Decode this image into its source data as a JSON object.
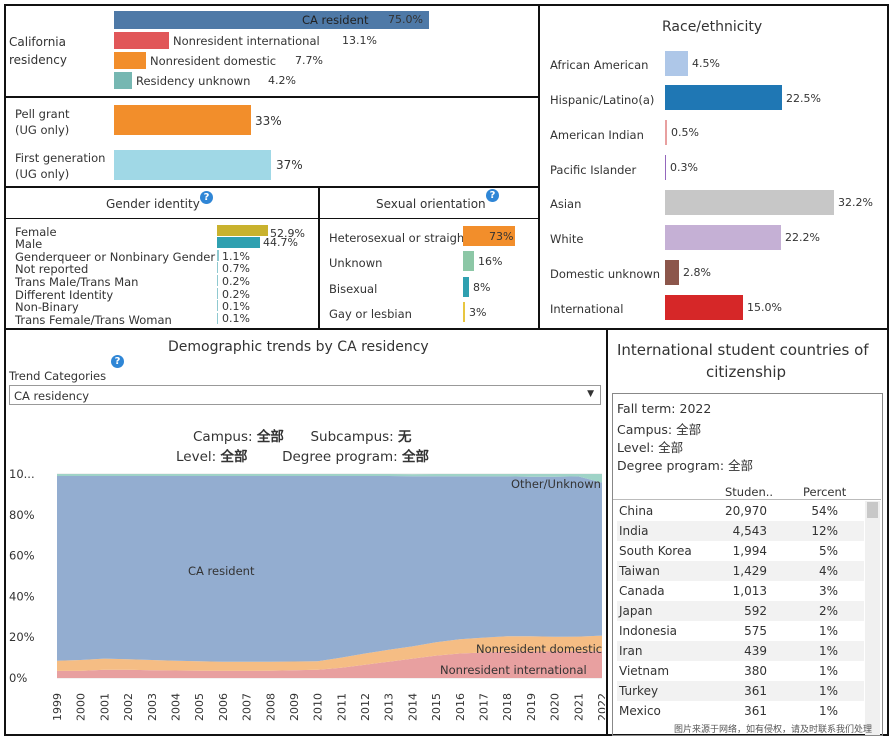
{
  "residency": {
    "label_line1": "California",
    "label_line2": "residency",
    "items": [
      {
        "label": "CA resident",
        "value": "75.0%",
        "pct": 75.0,
        "color": "#4e79a7"
      },
      {
        "label": "Nonresident international",
        "value": "13.1%",
        "pct": 13.1,
        "color": "#e15759"
      },
      {
        "label": "Nonresident domestic",
        "value": "7.7%",
        "pct": 7.7,
        "color": "#f28e2b"
      },
      {
        "label": "Residency unknown",
        "value": "4.2%",
        "pct": 4.2,
        "color": "#76b7b2"
      }
    ]
  },
  "pell": {
    "label_line1": "Pell grant",
    "label_line2": "(UG only)",
    "value": "33%",
    "pct": 33,
    "color": "#f28e2b"
  },
  "firstgen": {
    "label_line1": "First generation",
    "label_line2": "(UG only)",
    "value": "37%",
    "pct": 37,
    "color": "#a0d8e6"
  },
  "gender": {
    "title": "Gender identity",
    "items": [
      {
        "label": "Female",
        "value": "52.9%",
        "pct": 52.9,
        "color": "#c9b22e"
      },
      {
        "label": "Male",
        "value": "44.7%",
        "pct": 44.7,
        "color": "#2fa0b0"
      },
      {
        "label": "Genderqueer or Nonbinary Gender",
        "value": "1.1%",
        "pct": 1.1,
        "color": "#8fc9d0"
      },
      {
        "label": "Not reported",
        "value": "0.7%",
        "pct": 0.7,
        "color": "#8fc9d0"
      },
      {
        "label": "Trans Male/Trans Man",
        "value": "0.2%",
        "pct": 0.2,
        "color": "#8fc9d0"
      },
      {
        "label": "Different Identity",
        "value": "0.2%",
        "pct": 0.2,
        "color": "#8fc9d0"
      },
      {
        "label": "Non-Binary",
        "value": "0.1%",
        "pct": 0.1,
        "color": "#8fc9d0"
      },
      {
        "label": "Trans Female/Trans Woman",
        "value": "0.1%",
        "pct": 0.1,
        "color": "#8fc9d0"
      }
    ]
  },
  "orientation": {
    "title": "Sexual orientation",
    "items": [
      {
        "label": "Heterosexual or straigh",
        "value": "73%",
        "pct": 73,
        "color": "#f28e2b"
      },
      {
        "label": "Unknown",
        "value": "16%",
        "pct": 16,
        "color": "#8cc7a6"
      },
      {
        "label": "Bisexual",
        "value": "8%",
        "pct": 8,
        "color": "#2fa0b0"
      },
      {
        "label": "Gay or lesbian",
        "value": "3%",
        "pct": 3,
        "color": "#e8c640"
      }
    ]
  },
  "race": {
    "title": "Race/ethnicity",
    "items": [
      {
        "label": "African American",
        "value": "4.5%",
        "pct": 4.5,
        "color": "#aec7e8"
      },
      {
        "label": "Hispanic/Latino(a)",
        "value": "22.5%",
        "pct": 22.5,
        "color": "#1f77b4"
      },
      {
        "label": "American Indian",
        "value": "0.5%",
        "pct": 0.5,
        "color": "#e8a0a0"
      },
      {
        "label": "Pacific Islander",
        "value": "0.3%",
        "pct": 0.3,
        "color": "#9467bd"
      },
      {
        "label": "Asian",
        "value": "32.2%",
        "pct": 32.2,
        "color": "#c7c7c7"
      },
      {
        "label": "White",
        "value": "22.2%",
        "pct": 22.2,
        "color": "#c5b0d5"
      },
      {
        "label": "Domestic unknown",
        "value": "2.8%",
        "pct": 2.8,
        "color": "#8c564b"
      },
      {
        "label": "International",
        "value": "15.0%",
        "pct": 15.0,
        "color": "#d62728"
      }
    ]
  },
  "trends": {
    "title": "Demographic trends by CA residency",
    "categories_label": "Trend Categories",
    "dropdown_value": "CA residency",
    "filter_campus_label": "Campus:",
    "filter_campus_value": "全部",
    "filter_subcampus_label": "Subcampus:",
    "filter_subcampus_value": "无",
    "filter_level_label": "Level:",
    "filter_level_value": "全部",
    "filter_degree_label": "Degree program:",
    "filter_degree_value": "全部",
    "area_label_ca": "CA resident",
    "area_label_other": "Other/Unknown",
    "area_label_nrd": "Nonresident domestic",
    "area_label_nri": "Nonresident international",
    "y_ticks": [
      "10...",
      "80%",
      "60%",
      "40%",
      "20%",
      "0%"
    ]
  },
  "chart_data": {
    "type": "area",
    "title": "Demographic trends by CA residency",
    "x": [
      1999,
      2000,
      2001,
      2002,
      2003,
      2004,
      2005,
      2006,
      2007,
      2008,
      2009,
      2010,
      2011,
      2012,
      2013,
      2014,
      2015,
      2016,
      2017,
      2018,
      2019,
      2020,
      2021,
      2022
    ],
    "x_labels": [
      "1999",
      "2000",
      "2001",
      "2002",
      "2003",
      "2004",
      "2005",
      "2006",
      "2007",
      "2008",
      "2009",
      "2010",
      "2011",
      "2012",
      "2013",
      "2014",
      "2015",
      "2016",
      "2017",
      "2018",
      "2019",
      "2020",
      "2021",
      "2022"
    ],
    "ylim": [
      0,
      100
    ],
    "series": [
      {
        "name": "Nonresident international",
        "color": "#e8a0a0",
        "values": [
          3.5,
          3.5,
          4,
          4,
          3.8,
          3.7,
          3.6,
          3.5,
          3.5,
          3.6,
          3.8,
          4,
          5,
          6.5,
          8,
          9.5,
          11,
          12,
          12.5,
          13,
          13,
          13,
          13,
          13.1
        ]
      },
      {
        "name": "Nonresident domestic",
        "color": "#f5bd84",
        "values": [
          5,
          5.3,
          5.5,
          5.2,
          5,
          4.8,
          4.6,
          4.5,
          4.5,
          4.4,
          4.3,
          4.2,
          5,
          5.5,
          5.8,
          6,
          6.5,
          7,
          7.3,
          7.5,
          7.5,
          7.2,
          7.3,
          7.7
        ]
      },
      {
        "name": "CA resident",
        "color": "#93add0",
        "values": [
          90.5,
          90.2,
          89.5,
          89.8,
          90.2,
          90.5,
          90.8,
          91,
          91,
          91,
          90.9,
          90.8,
          89,
          87,
          85.2,
          83.4,
          81.4,
          79.8,
          79,
          78.3,
          78.2,
          78.5,
          78.5,
          75.0
        ]
      },
      {
        "name": "Other/Unknown",
        "color": "#9fd3c7",
        "values": [
          1,
          1,
          1,
          1,
          1,
          1,
          1,
          1,
          1,
          1,
          1,
          1,
          1,
          1,
          1,
          1,
          1.1,
          1.2,
          1.2,
          1.2,
          1.3,
          1.3,
          1.2,
          4.2
        ]
      }
    ]
  },
  "intl": {
    "title_line1": "International student countries of",
    "title_line2": "citizenship",
    "fall_term": "Fall term: 2022",
    "campus": "Campus: 全部",
    "level": "Level: 全部",
    "degree": "Degree program: 全部",
    "col_students": "Studen..",
    "col_percent": "Percent",
    "rows": [
      {
        "country": "China",
        "students": "20,970",
        "percent": "54%"
      },
      {
        "country": "India",
        "students": "4,543",
        "percent": "12%"
      },
      {
        "country": "South Korea",
        "students": "1,994",
        "percent": "5%"
      },
      {
        "country": "Taiwan",
        "students": "1,429",
        "percent": "4%"
      },
      {
        "country": "Canada",
        "students": "1,013",
        "percent": "3%"
      },
      {
        "country": "Japan",
        "students": "592",
        "percent": "2%"
      },
      {
        "country": "Indonesia",
        "students": "575",
        "percent": "1%"
      },
      {
        "country": "Iran",
        "students": "439",
        "percent": "1%"
      },
      {
        "country": "Vietnam",
        "students": "380",
        "percent": "1%"
      },
      {
        "country": "Turkey",
        "students": "361",
        "percent": "1%"
      },
      {
        "country": "Mexico",
        "students": "361",
        "percent": "1%"
      }
    ]
  },
  "watermark": "图片来源于网络，如有侵权，请及时联系我们处理"
}
